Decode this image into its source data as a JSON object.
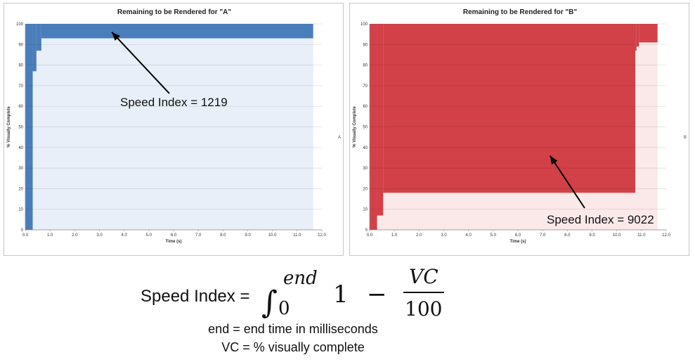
{
  "chart_data": [
    {
      "type": "area",
      "title": "Remaining to be Rendered for \"A\"",
      "xlabel": "Time (s)",
      "ylabel": "% Visually Complete",
      "side_label": "A",
      "xlim": [
        0,
        12
      ],
      "ylim": [
        0,
        100
      ],
      "xticks": [
        "0.0",
        "1.0",
        "2.0",
        "3.0",
        "4.0",
        "5.0",
        "6.0",
        "7.0",
        "8.0",
        "9.0",
        "10.0",
        "11.0",
        "12.0"
      ],
      "yticks": [
        "0",
        "10",
        "20",
        "30",
        "40",
        "50",
        "60",
        "70",
        "80",
        "90",
        "100"
      ],
      "grid": true,
      "remaining_color": "#4a7ebb",
      "rendered_color": "#e8eff8",
      "x": [
        0,
        0.3,
        0.45,
        0.65,
        11.65
      ],
      "visually_complete": [
        0,
        77,
        87,
        93,
        100
      ],
      "annotation": {
        "text": "Speed Index = 1219",
        "point": {
          "x": 3.5,
          "y": 96
        }
      }
    },
    {
      "type": "area",
      "title": "Remaining to be Rendered for \"B\"",
      "xlabel": "Time (s)",
      "ylabel": "% Visually Complete",
      "side_label": "B",
      "xlim": [
        0,
        12
      ],
      "ylim": [
        0,
        100
      ],
      "xticks": [
        "0.0",
        "1.0",
        "2.0",
        "3.0",
        "4.0",
        "5.0",
        "6.0",
        "7.0",
        "8.0",
        "9.0",
        "10.0",
        "11.0",
        "12.0"
      ],
      "yticks": [
        "0",
        "10",
        "20",
        "30",
        "40",
        "50",
        "60",
        "70",
        "80",
        "90",
        "100"
      ],
      "grid": true,
      "remaining_color": "#d24147",
      "rendered_color": "#fbe8e8",
      "x": [
        0,
        0.3,
        0.55,
        10.75,
        10.8,
        10.9,
        11.65
      ],
      "visually_complete": [
        0,
        7,
        18,
        87,
        89,
        91,
        100
      ],
      "annotation": {
        "text": "Speed Index = 9022",
        "point": {
          "x": 7.3,
          "y": 36
        }
      }
    }
  ],
  "formula": {
    "lhs": "Speed Index =",
    "upper_limit": "end",
    "lower_limit": "0",
    "one": "1",
    "minus": "−",
    "numerator": "VC",
    "denominator": "100",
    "legend_end": "end = end time in milliseconds",
    "legend_vc": "VC = % visually complete"
  }
}
